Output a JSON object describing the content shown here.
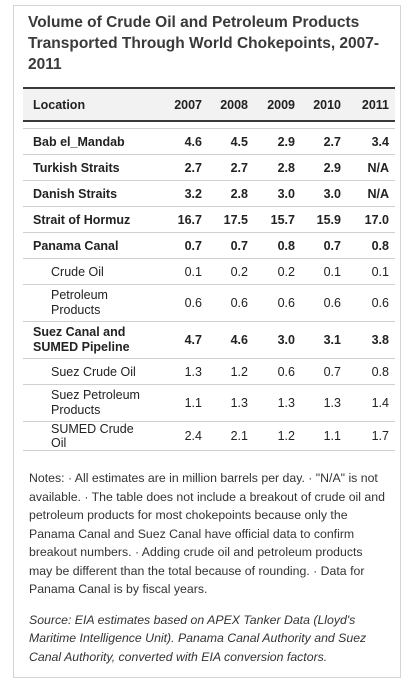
{
  "title": "Volume of Crude Oil and Petroleum Products Transported Through World Chokepoints, 2007-2011",
  "columns": [
    "Location",
    "2007",
    "2008",
    "2009",
    "2010",
    "2011"
  ],
  "rows": [
    {
      "label": "Bab el_Mandab",
      "values": [
        "4.6",
        "4.5",
        "2.9",
        "2.7",
        "3.4"
      ]
    },
    {
      "label": "Turkish Straits",
      "values": [
        "2.7",
        "2.7",
        "2.8",
        "2.9",
        "N/A"
      ]
    },
    {
      "label": "Danish Straits",
      "values": [
        "3.2",
        "2.8",
        "3.0",
        "3.0",
        "N/A"
      ]
    },
    {
      "label": "Strait of Hormuz",
      "values": [
        "16.7",
        "17.5",
        "15.7",
        "15.9",
        "17.0"
      ]
    },
    {
      "label": "Panama Canal",
      "values": [
        "0.7",
        "0.7",
        "0.8",
        "0.7",
        "0.8"
      ]
    },
    {
      "label": "Crude Oil",
      "values": [
        "0.1",
        "0.2",
        "0.2",
        "0.1",
        "0.1"
      ]
    },
    {
      "label": "Petroleum Products",
      "values": [
        "0.6",
        "0.6",
        "0.6",
        "0.6",
        "0.6"
      ]
    },
    {
      "label": "Suez Canal and SUMED Pipeline",
      "values": [
        "4.7",
        "4.6",
        "3.0",
        "3.1",
        "3.8"
      ]
    },
    {
      "label": "Suez Crude Oil",
      "values": [
        "1.3",
        "1.2",
        "0.6",
        "0.7",
        "0.8"
      ]
    },
    {
      "label": "Suez Petroleum Products",
      "values": [
        "1.1",
        "1.3",
        "1.3",
        "1.3",
        "1.4"
      ]
    },
    {
      "label": "SUMED Crude Oil",
      "values": [
        "2.4",
        "2.1",
        "1.2",
        "1.1",
        "1.7"
      ]
    }
  ],
  "notes": "Notes: · All estimates are in million barrels per day. · \"N/A\" is not available. · The table does not include a breakout of crude oil and petroleum products for most chokepoints because only the Panama Canal and Suez Canal have official data to confirm breakout numbers. · Adding crude oil and petroleum products may be different than the total because of rounding. · Data for Panama Canal is by fiscal years.",
  "source": "Source: EIA estimates based on APEX Tanker Data (Lloyd's Maritime Intelligence Unit). Panama Canal Authority and Suez Canal Authority, converted with EIA conversion factors."
}
